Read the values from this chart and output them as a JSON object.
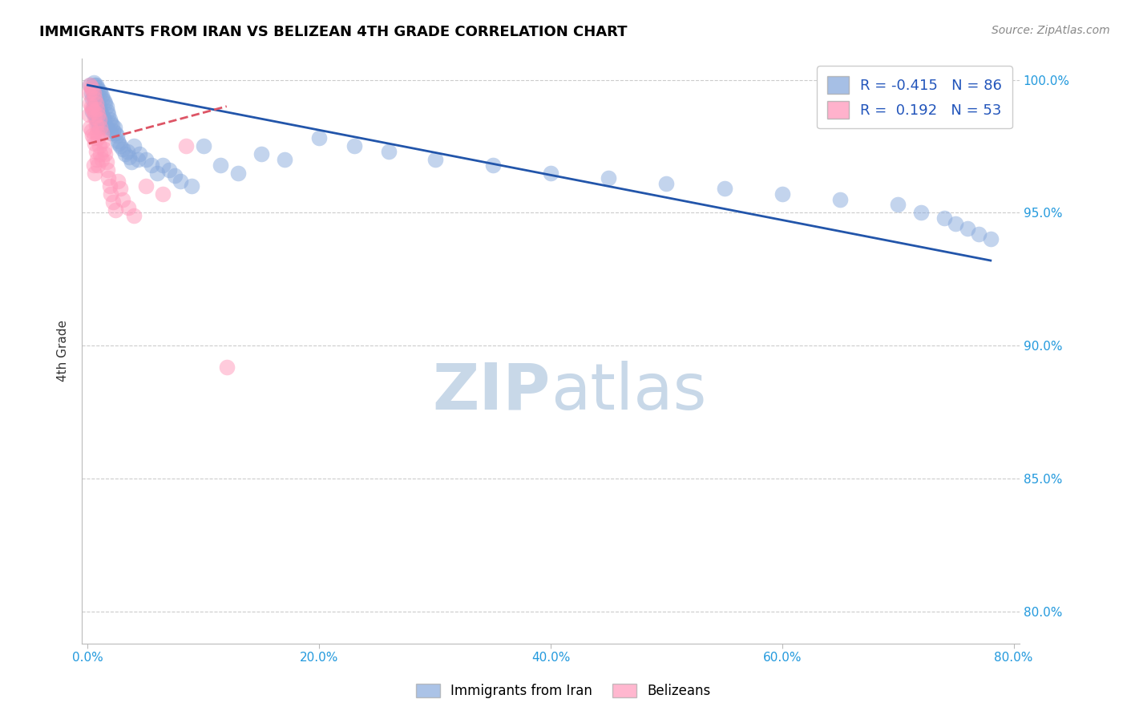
{
  "title": "IMMIGRANTS FROM IRAN VS BELIZEAN 4TH GRADE CORRELATION CHART",
  "source": "Source: ZipAtlas.com",
  "ylabel_label": "4th Grade",
  "x_tick_labels": [
    "0.0%",
    "",
    "",
    "",
    "",
    "20.0%",
    "",
    "",
    "",
    "",
    "40.0%",
    "",
    "",
    "",
    "",
    "60.0%",
    "",
    "",
    "",
    "",
    "80.0%"
  ],
  "y_tick_labels": [
    "80.0%",
    "85.0%",
    "90.0%",
    "95.0%",
    "100.0%"
  ],
  "xlim": [
    -0.005,
    0.805
  ],
  "ylim": [
    0.788,
    1.008
  ],
  "R_iran": -0.415,
  "N_iran": 86,
  "R_belizean": 0.192,
  "N_belizean": 53,
  "blue_color": "#88AADD",
  "pink_color": "#FF99BB",
  "trend_blue_color": "#2255AA",
  "trend_pink_color": "#DD5566",
  "watermark_color": "#C8D8E8",
  "blue_scatter_x": [
    0.002,
    0.003,
    0.004,
    0.004,
    0.005,
    0.005,
    0.005,
    0.006,
    0.006,
    0.006,
    0.007,
    0.007,
    0.007,
    0.008,
    0.008,
    0.008,
    0.009,
    0.009,
    0.009,
    0.01,
    0.01,
    0.01,
    0.011,
    0.011,
    0.012,
    0.012,
    0.013,
    0.013,
    0.014,
    0.014,
    0.015,
    0.015,
    0.016,
    0.016,
    0.017,
    0.018,
    0.019,
    0.02,
    0.02,
    0.021,
    0.022,
    0.023,
    0.024,
    0.025,
    0.026,
    0.027,
    0.028,
    0.03,
    0.032,
    0.034,
    0.036,
    0.038,
    0.04,
    0.043,
    0.045,
    0.05,
    0.055,
    0.06,
    0.065,
    0.07,
    0.075,
    0.08,
    0.09,
    0.1,
    0.115,
    0.13,
    0.15,
    0.17,
    0.2,
    0.23,
    0.26,
    0.3,
    0.35,
    0.4,
    0.45,
    0.5,
    0.55,
    0.6,
    0.65,
    0.7,
    0.72,
    0.74,
    0.75,
    0.76,
    0.77,
    0.78
  ],
  "blue_scatter_y": [
    0.998,
    0.995,
    0.993,
    0.988,
    0.999,
    0.995,
    0.99,
    0.998,
    0.993,
    0.987,
    0.998,
    0.993,
    0.985,
    0.997,
    0.992,
    0.985,
    0.996,
    0.991,
    0.983,
    0.996,
    0.99,
    0.982,
    0.995,
    0.988,
    0.994,
    0.987,
    0.993,
    0.986,
    0.992,
    0.985,
    0.991,
    0.983,
    0.99,
    0.982,
    0.988,
    0.987,
    0.985,
    0.984,
    0.98,
    0.983,
    0.981,
    0.982,
    0.98,
    0.979,
    0.977,
    0.976,
    0.975,
    0.974,
    0.972,
    0.973,
    0.971,
    0.969,
    0.975,
    0.97,
    0.972,
    0.97,
    0.968,
    0.965,
    0.968,
    0.966,
    0.964,
    0.962,
    0.96,
    0.975,
    0.968,
    0.965,
    0.972,
    0.97,
    0.978,
    0.975,
    0.973,
    0.97,
    0.968,
    0.965,
    0.963,
    0.961,
    0.959,
    0.957,
    0.955,
    0.953,
    0.95,
    0.948,
    0.946,
    0.944,
    0.942,
    0.94
  ],
  "pink_scatter_x": [
    0.001,
    0.001,
    0.002,
    0.002,
    0.002,
    0.003,
    0.003,
    0.003,
    0.004,
    0.004,
    0.004,
    0.005,
    0.005,
    0.005,
    0.005,
    0.006,
    0.006,
    0.006,
    0.006,
    0.007,
    0.007,
    0.007,
    0.008,
    0.008,
    0.008,
    0.009,
    0.009,
    0.009,
    0.01,
    0.01,
    0.011,
    0.011,
    0.012,
    0.012,
    0.013,
    0.014,
    0.015,
    0.016,
    0.017,
    0.018,
    0.019,
    0.02,
    0.022,
    0.024,
    0.026,
    0.028,
    0.03,
    0.035,
    0.04,
    0.05,
    0.065,
    0.085,
    0.12
  ],
  "pink_scatter_y": [
    0.995,
    0.987,
    0.998,
    0.991,
    0.982,
    0.997,
    0.99,
    0.981,
    0.996,
    0.989,
    0.979,
    0.995,
    0.988,
    0.978,
    0.968,
    0.993,
    0.986,
    0.976,
    0.965,
    0.991,
    0.983,
    0.973,
    0.989,
    0.98,
    0.97,
    0.987,
    0.978,
    0.968,
    0.985,
    0.975,
    0.982,
    0.972,
    0.98,
    0.97,
    0.977,
    0.974,
    0.972,
    0.969,
    0.966,
    0.963,
    0.96,
    0.957,
    0.954,
    0.951,
    0.962,
    0.959,
    0.955,
    0.952,
    0.949,
    0.96,
    0.957,
    0.975,
    0.892
  ],
  "blue_trend_x": [
    0.0,
    0.78
  ],
  "blue_trend_y": [
    0.998,
    0.932
  ],
  "pink_trend_x": [
    0.001,
    0.12
  ],
  "pink_trend_y": [
    0.976,
    0.99
  ]
}
